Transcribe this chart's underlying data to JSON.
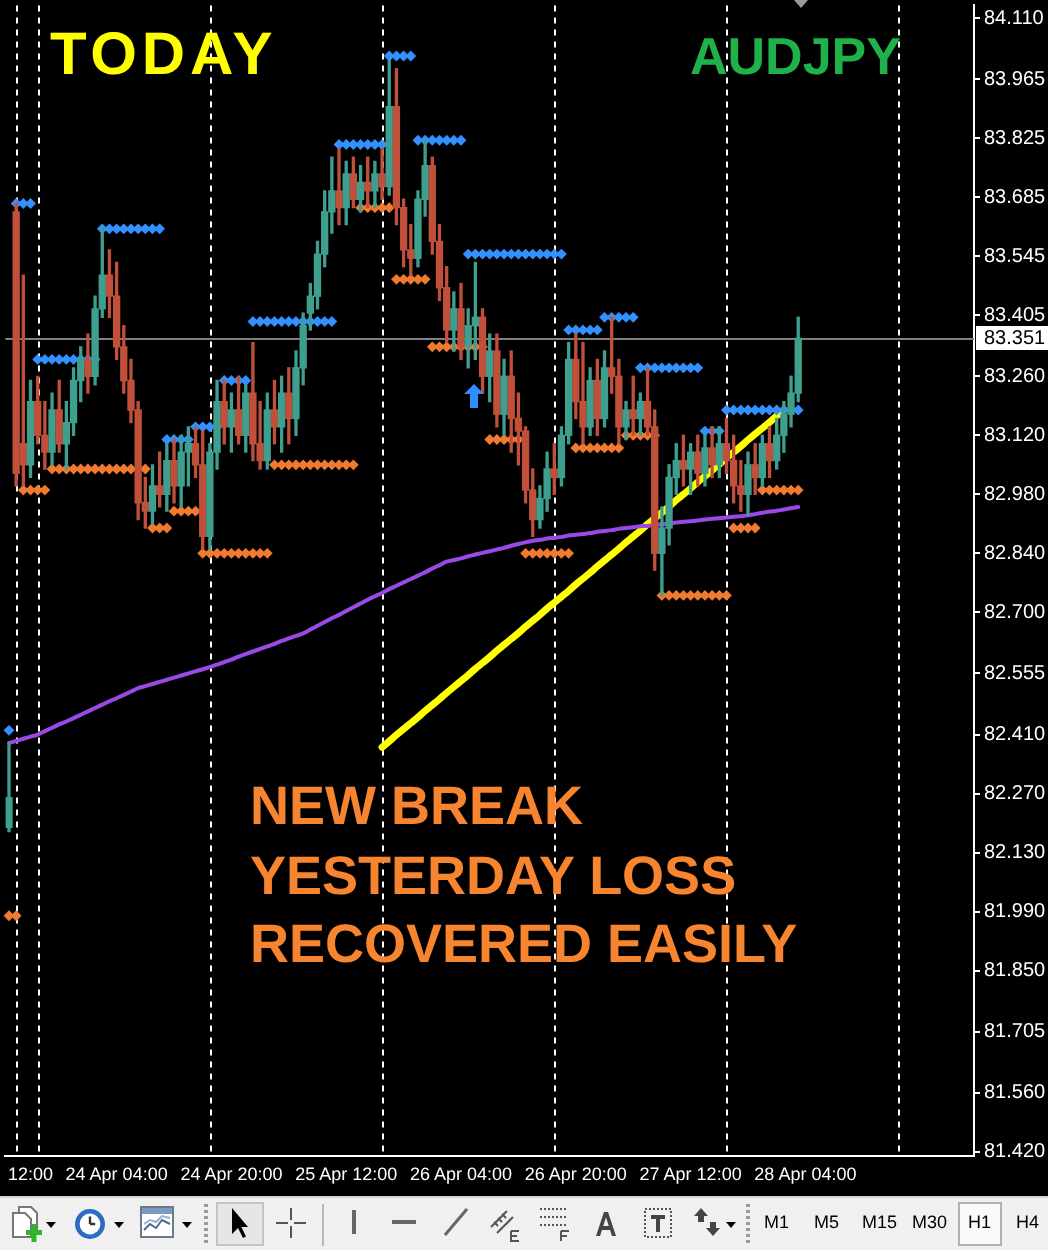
{
  "chart_data": {
    "type": "candlestick",
    "annotations": [
      "TODAY",
      "AUDJPY",
      "NEW BREAK",
      "YESTERDAY LOSS",
      "RECOVERED EASILY",
      "M1",
      "M5",
      "M15",
      "M30",
      "H1",
      "H4"
    ],
    "categories": [
      null,
      null,
      null,
      "12:00",
      null,
      null,
      null,
      null,
      null,
      null,
      null,
      null,
      null,
      null,
      null,
      "24 Apr 04:00",
      null,
      null,
      null,
      null,
      null,
      null,
      null,
      null,
      null,
      null,
      null,
      null,
      null,
      null,
      null,
      "24 Apr 20:00",
      null,
      null,
      null,
      null,
      null,
      null,
      null,
      null,
      null,
      null,
      null,
      null,
      null,
      null,
      null,
      "25 Apr 12:00",
      null,
      null,
      null,
      null,
      null,
      null,
      null,
      null,
      null,
      null,
      null,
      null,
      null,
      null,
      null,
      "26 Apr 04:00",
      null,
      null,
      null,
      null,
      null,
      null,
      null,
      null,
      null,
      null,
      null,
      null,
      null,
      null,
      null,
      "26 Apr 20:00",
      null,
      null,
      null,
      null,
      null,
      null,
      null,
      null,
      null,
      null,
      null,
      null,
      null,
      null,
      null,
      "27 Apr 12:00",
      null,
      null,
      null,
      null,
      null,
      null,
      null,
      null,
      null,
      null,
      null,
      null,
      null,
      null,
      null,
      "28 Apr 04:00",
      null,
      null,
      null,
      null,
      null,
      null,
      null,
      null,
      null,
      null,
      null,
      null,
      null,
      null,
      null,
      null,
      null,
      null,
      null,
      null,
      null,
      null,
      null
    ],
    "ohlc": [
      [
        82.19,
        82.39,
        82.18,
        82.26
      ],
      [
        83.65,
        83.67,
        83.0,
        83.03
      ],
      [
        83.1,
        83.5,
        83.0,
        83.05
      ],
      [
        83.05,
        83.25,
        83.02,
        83.2
      ],
      [
        83.2,
        83.26,
        83.1,
        83.12
      ],
      [
        83.12,
        83.2,
        83.04,
        83.08
      ],
      [
        83.08,
        83.22,
        83.05,
        83.18
      ],
      [
        83.18,
        83.25,
        83.08,
        83.1
      ],
      [
        83.1,
        83.2,
        83.04,
        83.15
      ],
      [
        83.15,
        83.28,
        83.12,
        83.25
      ],
      [
        83.25,
        83.33,
        83.2,
        83.3
      ],
      [
        83.3,
        83.36,
        83.22,
        83.26
      ],
      [
        83.26,
        83.45,
        83.24,
        83.42
      ],
      [
        83.42,
        83.61,
        83.4,
        83.5
      ],
      [
        83.5,
        83.56,
        83.4,
        83.45
      ],
      [
        83.45,
        83.53,
        83.3,
        83.33
      ],
      [
        83.33,
        83.38,
        83.22,
        83.25
      ],
      [
        83.25,
        83.3,
        83.15,
        83.18
      ],
      [
        83.18,
        83.2,
        82.92,
        82.96
      ],
      [
        82.96,
        83.02,
        82.9,
        82.94
      ],
      [
        82.94,
        83.05,
        82.91,
        83.0
      ],
      [
        83.0,
        83.08,
        82.95,
        82.98
      ],
      [
        82.98,
        83.1,
        82.94,
        83.06
      ],
      [
        83.06,
        83.11,
        82.96,
        83.0
      ],
      [
        83.0,
        83.12,
        82.95,
        83.08
      ],
      [
        83.08,
        83.14,
        83.0,
        83.1
      ],
      [
        83.1,
        83.14,
        83.02,
        83.05
      ],
      [
        83.05,
        83.13,
        82.85,
        82.88
      ],
      [
        82.88,
        83.1,
        82.85,
        83.08
      ],
      [
        83.08,
        83.25,
        83.04,
        83.2
      ],
      [
        83.2,
        83.25,
        83.1,
        83.14
      ],
      [
        83.14,
        83.22,
        83.08,
        83.18
      ],
      [
        83.18,
        83.26,
        83.1,
        83.12
      ],
      [
        83.12,
        83.24,
        83.08,
        83.22
      ],
      [
        83.22,
        83.34,
        83.06,
        83.1
      ],
      [
        83.1,
        83.2,
        83.04,
        83.06
      ],
      [
        83.06,
        83.22,
        83.04,
        83.18
      ],
      [
        83.18,
        83.25,
        83.1,
        83.14
      ],
      [
        83.14,
        83.26,
        83.08,
        83.22
      ],
      [
        83.22,
        83.28,
        83.1,
        83.16
      ],
      [
        83.16,
        83.32,
        83.12,
        83.28
      ],
      [
        83.28,
        83.41,
        83.24,
        83.38
      ],
      [
        83.41,
        83.48,
        83.37,
        83.45
      ],
      [
        83.45,
        83.58,
        83.42,
        83.55
      ],
      [
        83.55,
        83.7,
        83.52,
        83.65
      ],
      [
        83.65,
        83.78,
        83.6,
        83.7
      ],
      [
        83.7,
        83.8,
        83.62,
        83.66
      ],
      [
        83.66,
        83.77,
        83.62,
        83.74
      ],
      [
        83.74,
        83.78,
        83.66,
        83.68
      ],
      [
        83.68,
        83.76,
        83.65,
        83.72
      ],
      [
        83.72,
        83.78,
        83.66,
        83.7
      ],
      [
        83.7,
        83.77,
        83.66,
        83.74
      ],
      [
        83.74,
        83.8,
        83.68,
        83.71
      ],
      [
        83.71,
        84.01,
        83.69,
        83.9
      ],
      [
        83.9,
        83.99,
        83.62,
        83.66
      ],
      [
        83.66,
        83.68,
        83.52,
        83.56
      ],
      [
        83.56,
        83.62,
        83.5,
        83.54
      ],
      [
        83.54,
        83.7,
        83.52,
        83.68
      ],
      [
        83.68,
        83.82,
        83.64,
        83.76
      ],
      [
        83.76,
        83.78,
        83.55,
        83.58
      ],
      [
        83.58,
        83.62,
        83.44,
        83.47
      ],
      [
        83.47,
        83.52,
        83.34,
        83.37
      ],
      [
        83.37,
        83.46,
        83.32,
        83.42
      ],
      [
        83.42,
        83.48,
        83.3,
        83.33
      ],
      [
        83.33,
        83.42,
        83.28,
        83.38
      ],
      [
        83.38,
        83.53,
        83.3,
        83.4
      ],
      [
        83.4,
        83.42,
        83.22,
        83.26
      ],
      [
        83.26,
        83.36,
        83.2,
        83.32
      ],
      [
        83.32,
        83.36,
        83.14,
        83.17
      ],
      [
        83.17,
        83.3,
        83.12,
        83.26
      ],
      [
        83.26,
        83.32,
        83.08,
        83.16
      ],
      [
        83.16,
        83.22,
        83.05,
        83.13
      ],
      [
        83.13,
        83.14,
        82.96,
        82.99
      ],
      [
        82.99,
        83.04,
        82.88,
        82.92
      ],
      [
        82.92,
        83.0,
        82.9,
        82.97
      ],
      [
        82.97,
        83.08,
        82.94,
        83.04
      ],
      [
        83.04,
        83.1,
        82.98,
        83.02
      ],
      [
        83.02,
        83.14,
        83.0,
        83.12
      ],
      [
        83.12,
        83.34,
        83.1,
        83.3
      ],
      [
        83.3,
        83.36,
        83.16,
        83.2
      ],
      [
        83.2,
        83.34,
        83.1,
        83.14
      ],
      [
        83.14,
        83.28,
        83.12,
        83.25
      ],
      [
        83.25,
        83.3,
        83.12,
        83.16
      ],
      [
        83.16,
        83.32,
        83.14,
        83.28
      ],
      [
        83.28,
        83.4,
        83.22,
        83.26
      ],
      [
        83.26,
        83.3,
        83.1,
        83.14
      ],
      [
        83.14,
        83.2,
        83.11,
        83.18
      ],
      [
        83.18,
        83.26,
        83.12,
        83.16
      ],
      [
        83.16,
        83.22,
        83.12,
        83.2
      ],
      [
        83.2,
        83.28,
        83.12,
        83.14
      ],
      [
        83.14,
        83.18,
        82.8,
        82.84
      ],
      [
        82.84,
        82.95,
        82.74,
        82.9
      ],
      [
        82.9,
        83.05,
        82.86,
        83.02
      ],
      [
        83.02,
        83.1,
        82.98,
        83.06
      ],
      [
        83.06,
        83.12,
        83.0,
        83.04
      ],
      [
        83.04,
        83.1,
        82.98,
        83.08
      ],
      [
        83.08,
        83.12,
        83.0,
        83.03
      ],
      [
        83.03,
        83.12,
        83.0,
        83.09
      ],
      [
        83.09,
        83.14,
        83.02,
        83.05
      ],
      [
        83.05,
        83.14,
        83.02,
        83.1
      ],
      [
        83.1,
        83.16,
        83.03,
        83.06
      ],
      [
        83.06,
        83.12,
        82.96,
        83.0
      ],
      [
        83.0,
        83.06,
        82.94,
        82.98
      ],
      [
        82.98,
        83.08,
        82.93,
        83.05
      ],
      [
        83.05,
        83.1,
        82.98,
        83.02
      ],
      [
        83.02,
        83.12,
        83.0,
        83.1
      ],
      [
        83.1,
        83.14,
        83.02,
        83.06
      ],
      [
        83.06,
        83.16,
        83.04,
        83.12
      ],
      [
        83.12,
        83.2,
        83.08,
        83.17
      ],
      [
        83.17,
        83.26,
        83.14,
        83.22
      ],
      [
        83.22,
        83.4,
        83.2,
        83.35
      ],
      null,
      null,
      null,
      null,
      null,
      null,
      null,
      null,
      null,
      null,
      null,
      null,
      null,
      null,
      null,
      null,
      null,
      null,
      null,
      null,
      null,
      null,
      null,
      null
    ],
    "colors": [
      "#3f9f8f",
      "#c0503a",
      "#c0503a",
      "#3f9f8f",
      "#c0503a",
      "#c0503a",
      "#3f9f8f",
      "#c0503a",
      "#3f9f8f",
      "#3f9f8f",
      "#3f9f8f",
      "#c0503a",
      "#3f9f8f",
      "#3f9f8f",
      "#c0503a",
      "#c0503a",
      "#c0503a",
      "#c0503a",
      "#c0503a",
      "#c0503a",
      "#3f9f8f",
      "#c0503a",
      "#3f9f8f",
      "#c0503a",
      "#3f9f8f",
      "#3f9f8f",
      "#c0503a",
      "#c0503a",
      "#3f9f8f",
      "#3f9f8f",
      "#c0503a",
      "#3f9f8f",
      "#c0503a",
      "#3f9f8f",
      "#c0503a",
      "#c0503a",
      "#3f9f8f",
      "#c0503a",
      "#3f9f8f",
      "#c0503a",
      "#3f9f8f",
      "#3f9f8f",
      "#3f9f8f",
      "#3f9f8f",
      "#3f9f8f",
      "#3f9f8f",
      "#c0503a",
      "#3f9f8f",
      "#c0503a",
      "#3f9f8f",
      "#c0503a",
      "#3f9f8f",
      "#c0503a",
      "#3f9f8f",
      "#c0503a",
      "#c0503a",
      "#c0503a",
      "#3f9f8f",
      "#3f9f8f",
      "#c0503a",
      "#c0503a",
      "#c0503a",
      "#3f9f8f",
      "#c0503a",
      "#3f9f8f",
      "#3f9f8f",
      "#c0503a",
      "#3f9f8f",
      "#c0503a",
      "#3f9f8f",
      "#c0503a",
      "#c0503a",
      "#c0503a",
      "#c0503a",
      "#3f9f8f",
      "#3f9f8f",
      "#c0503a",
      "#3f9f8f",
      "#3f9f8f",
      "#c0503a",
      "#c0503a",
      "#3f9f8f",
      "#c0503a",
      "#3f9f8f",
      "#c0503a",
      "#c0503a",
      "#3f9f8f",
      "#c0503a",
      "#3f9f8f",
      "#c0503a",
      "#c0503a",
      "#3f9f8f",
      "#3f9f8f",
      "#3f9f8f",
      "#c0503a",
      "#3f9f8f",
      "#c0503a",
      "#3f9f8f",
      "#c0503a",
      "#3f9f8f",
      "#c0503a",
      "#c0503a",
      "#c0503a",
      "#3f9f8f",
      "#c0503a",
      "#3f9f8f",
      "#c0503a",
      "#3f9f8f",
      "#3f9f8f",
      "#3f9f8f",
      "#3f9f8f",
      null,
      null,
      null,
      null,
      null,
      null,
      null,
      null,
      null,
      null,
      null,
      null,
      null,
      null,
      null,
      null,
      null,
      null,
      null,
      null,
      null,
      null,
      null,
      null
    ],
    "series": [
      {
        "type": "scatter",
        "color": "#3391ff",
        "marker": "diamond",
        "values": [
          82.42,
          83.67,
          83.67,
          83.67,
          83.3,
          83.3,
          83.3,
          83.3,
          83.3,
          83.3,
          83.3,
          83.3,
          83.3,
          83.61,
          83.61,
          83.61,
          83.61,
          83.61,
          83.61,
          83.61,
          83.61,
          83.61,
          83.11,
          83.11,
          83.11,
          83.11,
          83.14,
          83.14,
          83.14,
          83.14,
          83.25,
          83.25,
          83.25,
          83.25,
          83.39,
          83.39,
          83.39,
          83.39,
          83.39,
          83.39,
          83.39,
          83.39,
          83.39,
          83.39,
          83.39,
          83.39,
          83.81,
          83.81,
          83.81,
          83.81,
          83.81,
          83.81,
          83.81,
          84.02,
          84.02,
          84.02,
          84.02,
          83.82,
          83.82,
          83.82,
          83.82,
          83.82,
          83.82,
          83.82,
          83.55,
          83.55,
          83.55,
          83.55,
          83.55,
          83.55,
          83.55,
          83.55,
          83.55,
          83.55,
          83.55,
          83.55,
          83.55,
          83.55,
          83.37,
          83.37,
          83.37,
          83.37,
          83.37,
          83.4,
          83.4,
          83.4,
          83.4,
          83.4,
          83.28,
          83.28,
          83.28,
          83.28,
          83.28,
          83.28,
          83.28,
          83.28,
          83.28,
          83.13,
          83.13,
          83.13,
          83.18,
          83.18,
          83.18,
          83.18,
          83.18,
          83.18,
          83.18,
          83.18,
          83.18,
          83.18,
          83.18,
          null,
          null,
          null,
          null,
          null,
          null,
          null,
          null,
          null,
          null,
          null,
          null,
          null,
          null,
          null,
          null,
          null,
          null,
          null,
          null,
          null,
          null,
          null,
          null
        ]
      },
      {
        "type": "scatter",
        "color": "#f07a30",
        "marker": "diamond",
        "values": [
          81.98,
          81.98,
          82.99,
          82.99,
          82.99,
          82.99,
          83.04,
          83.04,
          83.04,
          83.04,
          83.04,
          83.04,
          83.04,
          83.04,
          83.04,
          83.04,
          83.04,
          83.04,
          83.04,
          83.04,
          82.9,
          82.9,
          82.9,
          82.94,
          82.94,
          82.94,
          82.94,
          82.84,
          82.84,
          82.84,
          82.84,
          82.84,
          82.84,
          82.84,
          82.84,
          82.84,
          82.84,
          83.05,
          83.05,
          83.05,
          83.05,
          83.05,
          83.05,
          83.05,
          83.05,
          83.05,
          83.05,
          83.05,
          83.05,
          83.66,
          83.66,
          83.66,
          83.66,
          83.66,
          83.49,
          83.49,
          83.49,
          83.49,
          83.49,
          83.33,
          83.33,
          83.33,
          83.33,
          83.33,
          83.33,
          83.33,
          83.33,
          83.11,
          83.11,
          83.11,
          83.11,
          83.11,
          82.84,
          82.84,
          82.84,
          82.84,
          82.84,
          82.84,
          82.84,
          83.09,
          83.09,
          83.09,
          83.09,
          83.09,
          83.09,
          83.09,
          83.12,
          83.12,
          83.12,
          83.12,
          83.12,
          82.74,
          82.74,
          82.74,
          82.74,
          82.74,
          82.74,
          82.74,
          82.74,
          82.74,
          82.74,
          82.9,
          82.9,
          82.9,
          82.9,
          82.99,
          82.99,
          82.99,
          82.99,
          82.99,
          82.99,
          null,
          null,
          null,
          null,
          null,
          null,
          null,
          null,
          null,
          null,
          null,
          null,
          null,
          null,
          null,
          null,
          null,
          null,
          null,
          null,
          null,
          null,
          null,
          null
        ]
      },
      {
        "type": "line",
        "color": "#9a48e6",
        "marker": "none",
        "values": [
          82.39,
          82.395,
          82.4,
          82.405,
          82.41,
          82.418,
          82.426,
          82.434,
          82.441,
          82.449,
          82.457,
          82.465,
          82.473,
          82.481,
          82.489,
          82.496,
          82.504,
          82.512,
          82.52,
          82.525,
          82.53,
          82.535,
          82.54,
          82.545,
          82.55,
          82.555,
          82.56,
          82.565,
          82.57,
          82.576,
          82.582,
          82.588,
          82.595,
          82.601,
          82.607,
          82.613,
          82.619,
          82.625,
          82.632,
          82.638,
          82.644,
          82.65,
          82.659,
          82.668,
          82.677,
          82.686,
          82.694,
          82.703,
          82.712,
          82.721,
          82.73,
          82.738,
          82.746,
          82.755,
          82.763,
          82.771,
          82.779,
          82.787,
          82.795,
          82.804,
          82.812,
          82.82,
          82.824,
          82.828,
          82.833,
          82.837,
          82.841,
          82.845,
          82.849,
          82.853,
          82.858,
          82.862,
          82.866,
          82.87,
          82.872,
          82.875,
          82.877,
          82.879,
          82.882,
          82.884,
          82.886,
          82.888,
          82.891,
          82.893,
          82.895,
          82.898,
          82.9,
          82.902,
          82.904,
          82.905,
          82.907,
          82.909,
          82.911,
          82.913,
          82.915,
          82.916,
          82.918,
          82.92,
          82.922,
          82.923,
          82.925,
          82.927,
          82.928,
          82.93,
          82.933,
          82.936,
          82.939,
          82.941,
          82.944,
          82.947,
          82.95,
          null,
          null,
          null,
          null,
          null,
          null,
          null,
          null,
          null,
          null,
          null,
          null,
          null,
          null,
          null,
          null,
          null,
          null,
          null,
          null,
          null,
          null,
          null,
          null
        ]
      },
      {
        "type": "line",
        "color": "#ffff00",
        "marker": "none",
        "values": [
          null,
          null,
          null,
          null,
          null,
          null,
          null,
          null,
          null,
          null,
          null,
          null,
          null,
          null,
          null,
          null,
          null,
          null,
          null,
          null,
          null,
          null,
          null,
          null,
          null,
          null,
          null,
          null,
          null,
          null,
          null,
          null,
          null,
          null,
          null,
          null,
          null,
          null,
          null,
          null,
          null,
          null,
          null,
          null,
          null,
          null,
          null,
          null,
          null,
          null,
          null,
          null,
          82.38,
          82.394,
          82.409,
          82.423,
          82.437,
          82.451,
          82.466,
          82.48,
          82.494,
          82.509,
          82.523,
          82.537,
          82.551,
          82.566,
          82.58,
          82.594,
          82.609,
          82.623,
          82.637,
          82.651,
          82.666,
          82.68,
          82.694,
          82.709,
          82.723,
          82.737,
          82.751,
          82.766,
          82.78,
          82.794,
          82.809,
          82.823,
          82.837,
          82.851,
          82.866,
          82.88,
          82.894,
          82.909,
          82.923,
          82.937,
          82.951,
          82.966,
          82.98,
          82.994,
          83.009,
          83.023,
          83.037,
          83.051,
          83.066,
          83.08,
          83.094,
          83.109,
          83.123,
          83.137,
          83.151,
          83.166,
          83.18,
          null,
          null,
          null,
          null,
          null,
          null,
          null,
          null,
          null,
          null,
          null,
          null,
          null,
          null,
          null,
          null,
          null,
          null,
          null,
          null,
          null,
          null,
          null,
          null,
          null,
          null
        ]
      }
    ],
    "ylim": [
      81.41,
      84.14
    ],
    "yticks": [
      {
        "value": 84.11,
        "label": "84.110"
      },
      83.965,
      83.825,
      83.685,
      83.545,
      83.405,
      {
        "value": 83.26,
        "label": "83.260"
      },
      {
        "value": 83.12,
        "label": "83.120"
      },
      {
        "value": 82.98,
        "label": "82.980"
      },
      {
        "value": 82.84,
        "label": "82.840"
      },
      {
        "value": 82.7,
        "label": "82.700"
      },
      82.555,
      {
        "value": 82.41,
        "label": "82.410"
      },
      {
        "value": 82.27,
        "label": "82.270"
      },
      {
        "value": 82.13,
        "label": "82.130"
      },
      {
        "value": 81.99,
        "label": "81.990"
      },
      {
        "value": 81.85,
        "label": "81.850"
      },
      81.705,
      {
        "value": 81.56,
        "label": "81.560"
      },
      {
        "value": 81.42,
        "label": "81.420"
      }
    ],
    "ref_lines": [
      {
        "axis": "y",
        "value": 83.351,
        "label": "83.351",
        "color": "#808080"
      }
    ],
    "grid": false,
    "legend": false
  }
}
